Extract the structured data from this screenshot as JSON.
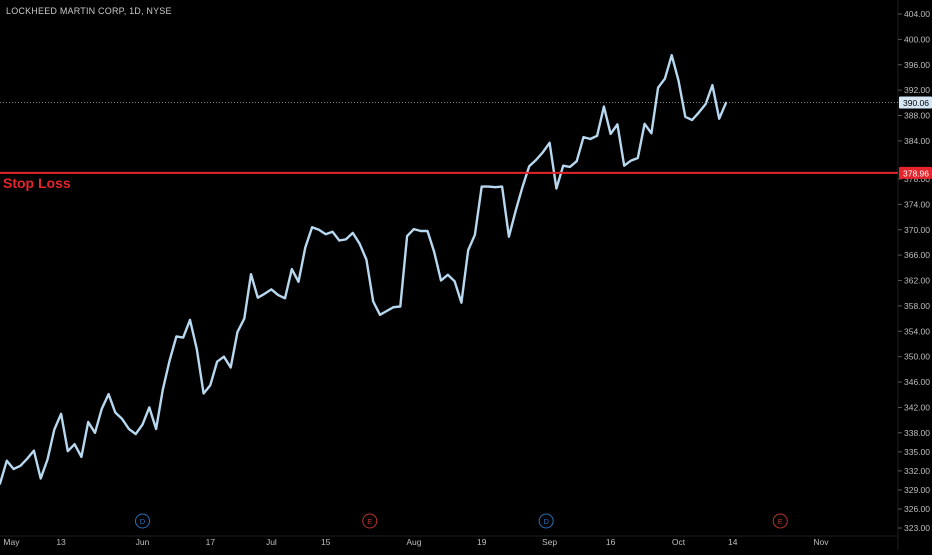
{
  "header": {
    "title": "LOCKHEED MARTIN CORP, 1D, NYSE"
  },
  "colors": {
    "background": "#000000",
    "line": "#b7d8ef",
    "stop_loss": "#e5242b",
    "axis_text": "#bfbfbf",
    "last_price_badge": "#d6e7f5",
    "dividend_marker": "#2a6fb5",
    "earnings_marker": "#b5352e"
  },
  "chart_data": {
    "type": "line",
    "title": "LOCKHEED MARTIN CORP, 1D, NYSE",
    "xlabel": "",
    "ylabel": "",
    "ylim": [
      322.5,
      405.5
    ],
    "grid": false,
    "y_ticks": [
      "404.00",
      "400.00",
      "396.00",
      "392.00",
      "388.00",
      "384.00",
      "378.00",
      "374.00",
      "370.00",
      "366.00",
      "362.00",
      "358.00",
      "354.00",
      "350.00",
      "346.00",
      "342.00",
      "338.00",
      "335.00",
      "332.00",
      "329.00",
      "326.00",
      "323.00"
    ],
    "x_ticks": [
      {
        "label": "May",
        "t": 0.5
      },
      {
        "label": "13",
        "t": 9
      },
      {
        "label": "Jun",
        "t": 21
      },
      {
        "label": "17",
        "t": 31
      },
      {
        "label": "Jul",
        "t": 40
      },
      {
        "label": "15",
        "t": 48
      },
      {
        "label": "Aug",
        "t": 61
      },
      {
        "label": "19",
        "t": 71
      },
      {
        "label": "Sep",
        "t": 81
      },
      {
        "label": "16",
        "t": 90
      },
      {
        "label": "Oct",
        "t": 100
      },
      {
        "label": "14",
        "t": 108
      },
      {
        "label": "Nov",
        "t": 121
      }
    ],
    "last_price": 390.06,
    "last_price_label": "390.06",
    "stop_loss": {
      "value": 378.96,
      "label": "Stop Loss",
      "price_label": "378.96"
    },
    "events": [
      {
        "type": "D",
        "t": 21
      },
      {
        "type": "E",
        "t": 54.5
      },
      {
        "type": "D",
        "t": 80.5
      },
      {
        "type": "E",
        "t": 115
      }
    ],
    "series": [
      {
        "points": [
          [
            0,
            330.0
          ],
          [
            1,
            333.6
          ],
          [
            2,
            332.3
          ],
          [
            3,
            332.8
          ],
          [
            4,
            333.9
          ],
          [
            5,
            335.2
          ],
          [
            6,
            330.8
          ],
          [
            7,
            333.8
          ],
          [
            8,
            338.5
          ],
          [
            9,
            341.0
          ],
          [
            10,
            335.1
          ],
          [
            11,
            336.2
          ],
          [
            12,
            334.2
          ],
          [
            13,
            339.7
          ],
          [
            14,
            338.0
          ],
          [
            15,
            341.8
          ],
          [
            16,
            344.1
          ],
          [
            17,
            341.2
          ],
          [
            18,
            340.2
          ],
          [
            19,
            338.6
          ],
          [
            20,
            337.8
          ],
          [
            21,
            339.3
          ],
          [
            22,
            342.0
          ],
          [
            23,
            338.6
          ],
          [
            24,
            344.8
          ],
          [
            25,
            349.4
          ],
          [
            26,
            353.2
          ],
          [
            27,
            353.0
          ],
          [
            28,
            355.8
          ],
          [
            29,
            351.2
          ],
          [
            30,
            344.2
          ],
          [
            31,
            345.5
          ],
          [
            32,
            349.2
          ],
          [
            33,
            350.0
          ],
          [
            34,
            348.3
          ],
          [
            35,
            353.9
          ],
          [
            36,
            356.0
          ],
          [
            37,
            363.0
          ],
          [
            38,
            359.3
          ],
          [
            39,
            359.9
          ],
          [
            40,
            360.6
          ],
          [
            41,
            359.7
          ],
          [
            42,
            359.2
          ],
          [
            43,
            363.8
          ],
          [
            44,
            361.8
          ],
          [
            45,
            367.2
          ],
          [
            46,
            370.4
          ],
          [
            47,
            370.0
          ],
          [
            48,
            369.3
          ],
          [
            49,
            369.7
          ],
          [
            50,
            368.3
          ],
          [
            51,
            368.5
          ],
          [
            52,
            369.5
          ],
          [
            53,
            367.8
          ],
          [
            54,
            365.3
          ],
          [
            55,
            358.7
          ],
          [
            56,
            356.6
          ],
          [
            57,
            357.2
          ],
          [
            58,
            357.8
          ],
          [
            59,
            357.9
          ],
          [
            60,
            369.0
          ],
          [
            61,
            370.1
          ],
          [
            62,
            369.8
          ],
          [
            63,
            369.8
          ],
          [
            64,
            366.5
          ],
          [
            65,
            362.0
          ],
          [
            66,
            362.9
          ],
          [
            67,
            361.9
          ],
          [
            68,
            358.5
          ],
          [
            69,
            366.8
          ],
          [
            70,
            369.2
          ],
          [
            71,
            376.8
          ],
          [
            72,
            376.8
          ],
          [
            73,
            376.7
          ],
          [
            74,
            376.8
          ],
          [
            75,
            368.9
          ],
          [
            76,
            373.0
          ],
          [
            77,
            376.7
          ],
          [
            78,
            380.0
          ],
          [
            79,
            381.0
          ],
          [
            80,
            382.2
          ],
          [
            81,
            383.7
          ],
          [
            82,
            376.5
          ],
          [
            83,
            380.1
          ],
          [
            84,
            379.9
          ],
          [
            85,
            380.8
          ],
          [
            86,
            384.6
          ],
          [
            87,
            384.3
          ],
          [
            88,
            384.8
          ],
          [
            89,
            389.4
          ],
          [
            90,
            385.1
          ],
          [
            91,
            386.6
          ],
          [
            92,
            380.1
          ],
          [
            93,
            380.9
          ],
          [
            94,
            381.3
          ],
          [
            95,
            386.7
          ],
          [
            96,
            385.2
          ],
          [
            97,
            392.4
          ],
          [
            98,
            393.8
          ],
          [
            99,
            397.5
          ],
          [
            100,
            393.5
          ],
          [
            101,
            387.8
          ],
          [
            102,
            387.3
          ],
          [
            103,
            388.5
          ],
          [
            104,
            389.8
          ],
          [
            105,
            392.8
          ],
          [
            106,
            387.5
          ],
          [
            107,
            390.0
          ]
        ]
      }
    ]
  }
}
